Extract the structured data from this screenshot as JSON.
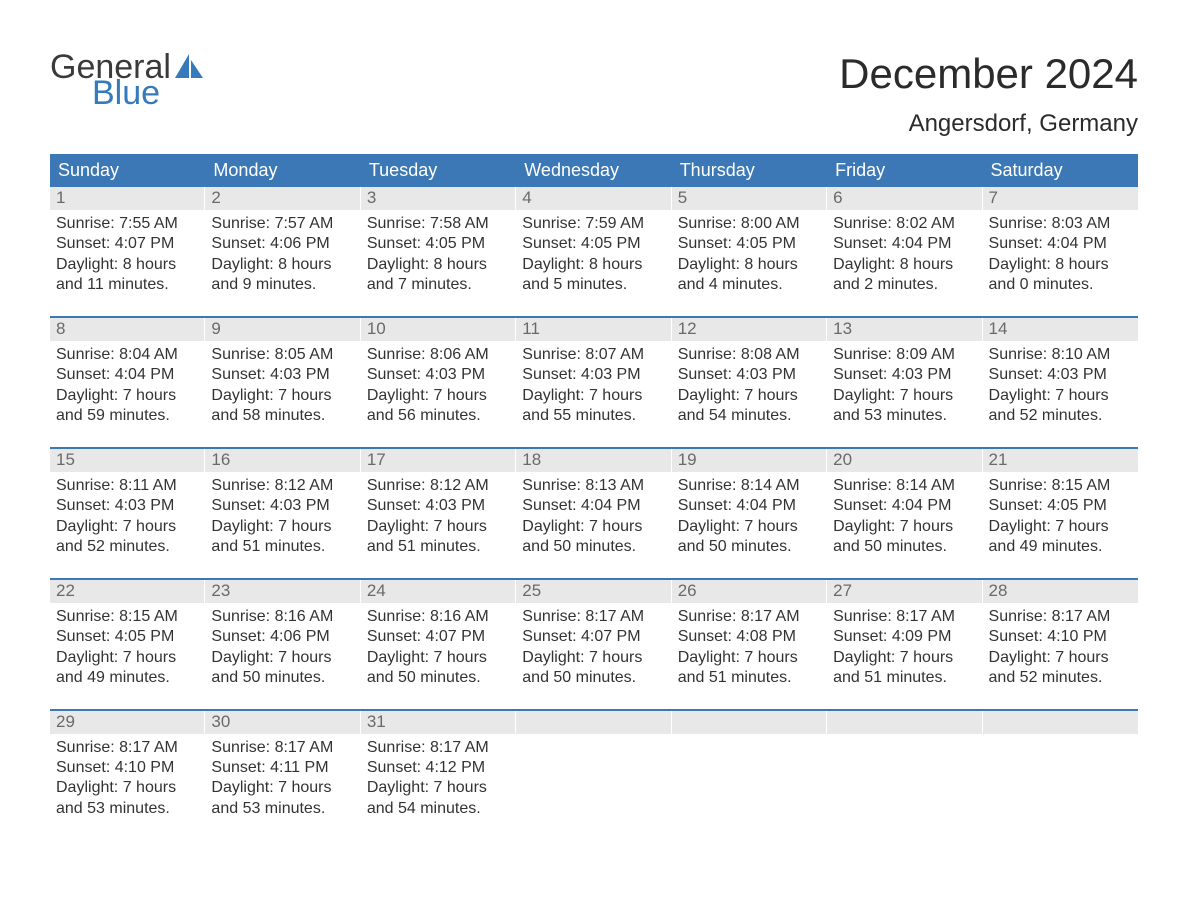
{
  "brand": {
    "general": "General",
    "blue": "Blue",
    "sail_color": "#357ABD"
  },
  "title": "December 2024",
  "location": "Angersdorf, Germany",
  "colors": {
    "header_bg": "#3b78b5",
    "header_text": "#ffffff",
    "daynum_bg": "#e8e8e8",
    "daynum_text": "#6a6a6a",
    "week_rule": "#3b78b5",
    "body_text": "#333333",
    "background": "#ffffff",
    "brand_blue": "#357ABD",
    "brand_dark": "#3a3a3a"
  },
  "typography": {
    "month_title_pt": 42,
    "location_pt": 24,
    "weekday_pt": 18,
    "daynum_pt": 17,
    "body_pt": 16
  },
  "weekdays": [
    "Sunday",
    "Monday",
    "Tuesday",
    "Wednesday",
    "Thursday",
    "Friday",
    "Saturday"
  ],
  "days": [
    {
      "n": 1,
      "sunrise": "7:55 AM",
      "sunset": "4:07 PM",
      "daylight_h": 8,
      "daylight_m": 11
    },
    {
      "n": 2,
      "sunrise": "7:57 AM",
      "sunset": "4:06 PM",
      "daylight_h": 8,
      "daylight_m": 9
    },
    {
      "n": 3,
      "sunrise": "7:58 AM",
      "sunset": "4:05 PM",
      "daylight_h": 8,
      "daylight_m": 7
    },
    {
      "n": 4,
      "sunrise": "7:59 AM",
      "sunset": "4:05 PM",
      "daylight_h": 8,
      "daylight_m": 5
    },
    {
      "n": 5,
      "sunrise": "8:00 AM",
      "sunset": "4:05 PM",
      "daylight_h": 8,
      "daylight_m": 4
    },
    {
      "n": 6,
      "sunrise": "8:02 AM",
      "sunset": "4:04 PM",
      "daylight_h": 8,
      "daylight_m": 2
    },
    {
      "n": 7,
      "sunrise": "8:03 AM",
      "sunset": "4:04 PM",
      "daylight_h": 8,
      "daylight_m": 0
    },
    {
      "n": 8,
      "sunrise": "8:04 AM",
      "sunset": "4:04 PM",
      "daylight_h": 7,
      "daylight_m": 59
    },
    {
      "n": 9,
      "sunrise": "8:05 AM",
      "sunset": "4:03 PM",
      "daylight_h": 7,
      "daylight_m": 58
    },
    {
      "n": 10,
      "sunrise": "8:06 AM",
      "sunset": "4:03 PM",
      "daylight_h": 7,
      "daylight_m": 56
    },
    {
      "n": 11,
      "sunrise": "8:07 AM",
      "sunset": "4:03 PM",
      "daylight_h": 7,
      "daylight_m": 55
    },
    {
      "n": 12,
      "sunrise": "8:08 AM",
      "sunset": "4:03 PM",
      "daylight_h": 7,
      "daylight_m": 54
    },
    {
      "n": 13,
      "sunrise": "8:09 AM",
      "sunset": "4:03 PM",
      "daylight_h": 7,
      "daylight_m": 53
    },
    {
      "n": 14,
      "sunrise": "8:10 AM",
      "sunset": "4:03 PM",
      "daylight_h": 7,
      "daylight_m": 52
    },
    {
      "n": 15,
      "sunrise": "8:11 AM",
      "sunset": "4:03 PM",
      "daylight_h": 7,
      "daylight_m": 52
    },
    {
      "n": 16,
      "sunrise": "8:12 AM",
      "sunset": "4:03 PM",
      "daylight_h": 7,
      "daylight_m": 51
    },
    {
      "n": 17,
      "sunrise": "8:12 AM",
      "sunset": "4:03 PM",
      "daylight_h": 7,
      "daylight_m": 51
    },
    {
      "n": 18,
      "sunrise": "8:13 AM",
      "sunset": "4:04 PM",
      "daylight_h": 7,
      "daylight_m": 50
    },
    {
      "n": 19,
      "sunrise": "8:14 AM",
      "sunset": "4:04 PM",
      "daylight_h": 7,
      "daylight_m": 50
    },
    {
      "n": 20,
      "sunrise": "8:14 AM",
      "sunset": "4:04 PM",
      "daylight_h": 7,
      "daylight_m": 50
    },
    {
      "n": 21,
      "sunrise": "8:15 AM",
      "sunset": "4:05 PM",
      "daylight_h": 7,
      "daylight_m": 49
    },
    {
      "n": 22,
      "sunrise": "8:15 AM",
      "sunset": "4:05 PM",
      "daylight_h": 7,
      "daylight_m": 49
    },
    {
      "n": 23,
      "sunrise": "8:16 AM",
      "sunset": "4:06 PM",
      "daylight_h": 7,
      "daylight_m": 50
    },
    {
      "n": 24,
      "sunrise": "8:16 AM",
      "sunset": "4:07 PM",
      "daylight_h": 7,
      "daylight_m": 50
    },
    {
      "n": 25,
      "sunrise": "8:17 AM",
      "sunset": "4:07 PM",
      "daylight_h": 7,
      "daylight_m": 50
    },
    {
      "n": 26,
      "sunrise": "8:17 AM",
      "sunset": "4:08 PM",
      "daylight_h": 7,
      "daylight_m": 51
    },
    {
      "n": 27,
      "sunrise": "8:17 AM",
      "sunset": "4:09 PM",
      "daylight_h": 7,
      "daylight_m": 51
    },
    {
      "n": 28,
      "sunrise": "8:17 AM",
      "sunset": "4:10 PM",
      "daylight_h": 7,
      "daylight_m": 52
    },
    {
      "n": 29,
      "sunrise": "8:17 AM",
      "sunset": "4:10 PM",
      "daylight_h": 7,
      "daylight_m": 53
    },
    {
      "n": 30,
      "sunrise": "8:17 AM",
      "sunset": "4:11 PM",
      "daylight_h": 7,
      "daylight_m": 53
    },
    {
      "n": 31,
      "sunrise": "8:17 AM",
      "sunset": "4:12 PM",
      "daylight_h": 7,
      "daylight_m": 54
    }
  ],
  "labels": {
    "sunrise_prefix": "Sunrise: ",
    "sunset_prefix": "Sunset: ",
    "daylight_prefix": "Daylight: ",
    "hours_word": " hours",
    "and_word": "and ",
    "minutes_word": " minutes."
  },
  "layout": {
    "columns": 7,
    "first_weekday_index": 0,
    "week_count": 5
  }
}
